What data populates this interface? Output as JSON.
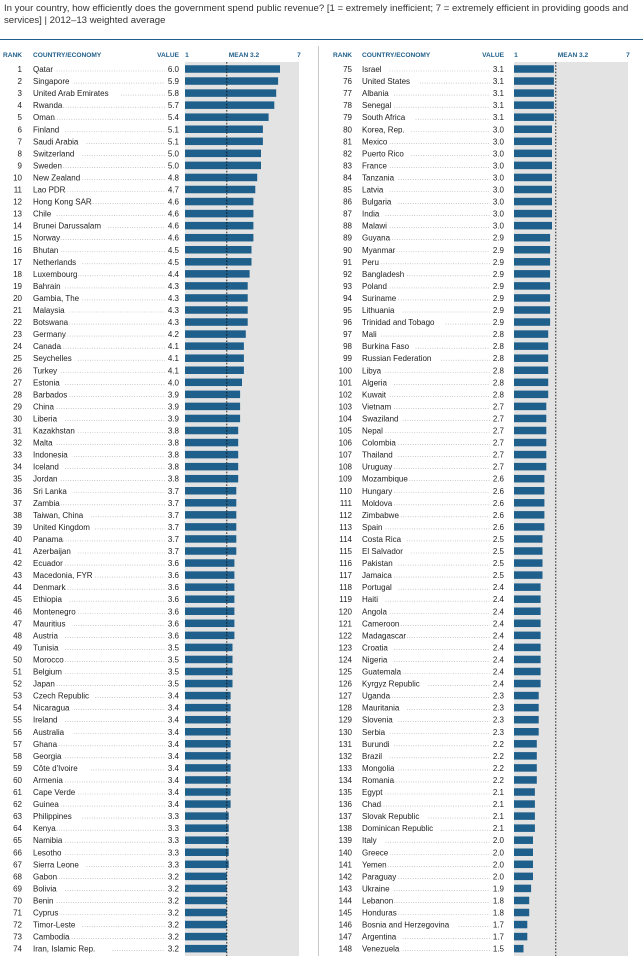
{
  "title": "In your country, how efficiently does the government spend public revenue? [1 = extremely inefficient; 7 = extremely efficient in providing goods and services] | 2012–13 weighted average",
  "colors": {
    "bar": "#1f5f8b",
    "track": "#e3e3e3",
    "header": "#1f5f8b",
    "text": "#222222"
  },
  "chart_data": {
    "type": "bar",
    "orientation": "horizontal",
    "title": "In your country, how efficiently does the government spend public revenue? [1 = extremely inefficient; 7 = extremely efficient in providing goods and services] | 2012–13 weighted average",
    "headers": {
      "rank": "RANK",
      "country": "COUNTRY/ECONOMY",
      "value": "VALUE",
      "scale_min": "1",
      "mean": "MEAN 3.2",
      "scale_max": "7"
    },
    "xlim": [
      1,
      7
    ],
    "mean": 3.2,
    "rows": [
      {
        "rank": "1",
        "country": "Qatar",
        "value": 6.0
      },
      {
        "rank": "2",
        "country": "Singapore",
        "value": 5.9
      },
      {
        "rank": "3",
        "country": "United Arab Emirates",
        "value": 5.8
      },
      {
        "rank": "4",
        "country": "Rwanda",
        "value": 5.7
      },
      {
        "rank": "5",
        "country": "Oman",
        "value": 5.4
      },
      {
        "rank": "6",
        "country": "Finland",
        "value": 5.1
      },
      {
        "rank": "7",
        "country": "Saudi Arabia",
        "value": 5.1
      },
      {
        "rank": "8",
        "country": "Switzerland",
        "value": 5.0
      },
      {
        "rank": "9",
        "country": "Sweden",
        "value": 5.0
      },
      {
        "rank": "10",
        "country": "New Zealand",
        "value": 4.8
      },
      {
        "rank": "11",
        "country": "Lao PDR",
        "value": 4.7
      },
      {
        "rank": "12",
        "country": "Hong Kong SAR",
        "value": 4.6
      },
      {
        "rank": "13",
        "country": "Chile",
        "value": 4.6
      },
      {
        "rank": "14",
        "country": "Brunei Darussalam",
        "value": 4.6
      },
      {
        "rank": "15",
        "country": "Norway",
        "value": 4.6
      },
      {
        "rank": "16",
        "country": "Bhutan",
        "value": 4.5
      },
      {
        "rank": "17",
        "country": "Netherlands",
        "value": 4.5
      },
      {
        "rank": "18",
        "country": "Luxembourg",
        "value": 4.4
      },
      {
        "rank": "19",
        "country": "Bahrain",
        "value": 4.3
      },
      {
        "rank": "20",
        "country": "Gambia, The",
        "value": 4.3
      },
      {
        "rank": "21",
        "country": "Malaysia",
        "value": 4.3
      },
      {
        "rank": "22",
        "country": "Botswana",
        "value": 4.3
      },
      {
        "rank": "23",
        "country": "Germany",
        "value": 4.2
      },
      {
        "rank": "24",
        "country": "Canada",
        "value": 4.1
      },
      {
        "rank": "25",
        "country": "Seychelles",
        "value": 4.1
      },
      {
        "rank": "26",
        "country": "Turkey",
        "value": 4.1
      },
      {
        "rank": "27",
        "country": "Estonia",
        "value": 4.0
      },
      {
        "rank": "28",
        "country": "Barbados",
        "value": 3.9
      },
      {
        "rank": "29",
        "country": "China",
        "value": 3.9
      },
      {
        "rank": "30",
        "country": "Liberia",
        "value": 3.9
      },
      {
        "rank": "31",
        "country": "Kazakhstan",
        "value": 3.8
      },
      {
        "rank": "32",
        "country": "Malta",
        "value": 3.8
      },
      {
        "rank": "33",
        "country": "Indonesia",
        "value": 3.8
      },
      {
        "rank": "34",
        "country": "Iceland",
        "value": 3.8
      },
      {
        "rank": "35",
        "country": "Jordan",
        "value": 3.8
      },
      {
        "rank": "36",
        "country": "Sri Lanka",
        "value": 3.7
      },
      {
        "rank": "37",
        "country": "Zambia",
        "value": 3.7
      },
      {
        "rank": "38",
        "country": "Taiwan, China",
        "value": 3.7
      },
      {
        "rank": "39",
        "country": "United Kingdom",
        "value": 3.7
      },
      {
        "rank": "40",
        "country": "Panama",
        "value": 3.7
      },
      {
        "rank": "41",
        "country": "Azerbaijan",
        "value": 3.7
      },
      {
        "rank": "42",
        "country": "Ecuador",
        "value": 3.6
      },
      {
        "rank": "43",
        "country": "Macedonia, FYR",
        "value": 3.6
      },
      {
        "rank": "44",
        "country": "Denmark",
        "value": 3.6
      },
      {
        "rank": "45",
        "country": "Ethiopia",
        "value": 3.6
      },
      {
        "rank": "46",
        "country": "Montenegro",
        "value": 3.6
      },
      {
        "rank": "47",
        "country": "Mauritius",
        "value": 3.6
      },
      {
        "rank": "48",
        "country": "Austria",
        "value": 3.6
      },
      {
        "rank": "49",
        "country": "Tunisia",
        "value": 3.5
      },
      {
        "rank": "50",
        "country": "Morocco",
        "value": 3.5
      },
      {
        "rank": "51",
        "country": "Belgium",
        "value": 3.5
      },
      {
        "rank": "52",
        "country": "Japan",
        "value": 3.5
      },
      {
        "rank": "53",
        "country": "Czech Republic",
        "value": 3.4
      },
      {
        "rank": "54",
        "country": "Nicaragua",
        "value": 3.4
      },
      {
        "rank": "55",
        "country": "Ireland",
        "value": 3.4
      },
      {
        "rank": "56",
        "country": "Australia",
        "value": 3.4
      },
      {
        "rank": "57",
        "country": "Ghana",
        "value": 3.4
      },
      {
        "rank": "58",
        "country": "Georgia",
        "value": 3.4
      },
      {
        "rank": "59",
        "country": "Côte d'Ivoire",
        "value": 3.4
      },
      {
        "rank": "60",
        "country": "Armenia",
        "value": 3.4
      },
      {
        "rank": "61",
        "country": "Cape Verde",
        "value": 3.4
      },
      {
        "rank": "62",
        "country": "Guinea",
        "value": 3.4
      },
      {
        "rank": "63",
        "country": "Philippines",
        "value": 3.3
      },
      {
        "rank": "64",
        "country": "Kenya",
        "value": 3.3
      },
      {
        "rank": "65",
        "country": "Namibia",
        "value": 3.3
      },
      {
        "rank": "66",
        "country": "Lesotho",
        "value": 3.3
      },
      {
        "rank": "67",
        "country": "Sierra Leone",
        "value": 3.3
      },
      {
        "rank": "68",
        "country": "Gabon",
        "value": 3.2
      },
      {
        "rank": "69",
        "country": "Bolivia",
        "value": 3.2
      },
      {
        "rank": "70",
        "country": "Benin",
        "value": 3.2
      },
      {
        "rank": "71",
        "country": "Cyprus",
        "value": 3.2
      },
      {
        "rank": "72",
        "country": "Timor-Leste",
        "value": 3.2
      },
      {
        "rank": "73",
        "country": "Cambodia",
        "value": 3.2
      },
      {
        "rank": "74",
        "country": "Iran, Islamic Rep.",
        "value": 3.2
      },
      {
        "rank": "75",
        "country": "Israel",
        "value": 3.1
      },
      {
        "rank": "76",
        "country": "United States",
        "value": 3.1
      },
      {
        "rank": "77",
        "country": "Albania",
        "value": 3.1
      },
      {
        "rank": "78",
        "country": "Senegal",
        "value": 3.1
      },
      {
        "rank": "79",
        "country": "South Africa",
        "value": 3.1
      },
      {
        "rank": "80",
        "country": "Korea, Rep.",
        "value": 3.0
      },
      {
        "rank": "81",
        "country": "Mexico",
        "value": 3.0
      },
      {
        "rank": "82",
        "country": "Puerto Rico",
        "value": 3.0
      },
      {
        "rank": "83",
        "country": "France",
        "value": 3.0
      },
      {
        "rank": "84",
        "country": "Tanzania",
        "value": 3.0
      },
      {
        "rank": "85",
        "country": "Latvia",
        "value": 3.0
      },
      {
        "rank": "86",
        "country": "Bulgaria",
        "value": 3.0
      },
      {
        "rank": "87",
        "country": "India",
        "value": 3.0
      },
      {
        "rank": "88",
        "country": "Malawi",
        "value": 3.0
      },
      {
        "rank": "89",
        "country": "Guyana",
        "value": 2.9
      },
      {
        "rank": "90",
        "country": "Myanmar",
        "value": 2.9
      },
      {
        "rank": "91",
        "country": "Peru",
        "value": 2.9
      },
      {
        "rank": "92",
        "country": "Bangladesh",
        "value": 2.9
      },
      {
        "rank": "93",
        "country": "Poland",
        "value": 2.9
      },
      {
        "rank": "94",
        "country": "Suriname",
        "value": 2.9
      },
      {
        "rank": "95",
        "country": "Lithuania",
        "value": 2.9
      },
      {
        "rank": "96",
        "country": "Trinidad and Tobago",
        "value": 2.9
      },
      {
        "rank": "97",
        "country": "Mali",
        "value": 2.8
      },
      {
        "rank": "98",
        "country": "Burkina Faso",
        "value": 2.8
      },
      {
        "rank": "99",
        "country": "Russian Federation",
        "value": 2.8
      },
      {
        "rank": "100",
        "country": "Libya",
        "value": 2.8
      },
      {
        "rank": "101",
        "country": "Algeria",
        "value": 2.8
      },
      {
        "rank": "102",
        "country": "Kuwait",
        "value": 2.8
      },
      {
        "rank": "103",
        "country": "Vietnam",
        "value": 2.7
      },
      {
        "rank": "104",
        "country": "Swaziland",
        "value": 2.7
      },
      {
        "rank": "105",
        "country": "Nepal",
        "value": 2.7
      },
      {
        "rank": "106",
        "country": "Colombia",
        "value": 2.7
      },
      {
        "rank": "107",
        "country": "Thailand",
        "value": 2.7
      },
      {
        "rank": "108",
        "country": "Uruguay",
        "value": 2.7
      },
      {
        "rank": "109",
        "country": "Mozambique",
        "value": 2.6
      },
      {
        "rank": "110",
        "country": "Hungary",
        "value": 2.6
      },
      {
        "rank": "111",
        "country": "Moldova",
        "value": 2.6
      },
      {
        "rank": "112",
        "country": "Zimbabwe",
        "value": 2.6
      },
      {
        "rank": "113",
        "country": "Spain",
        "value": 2.6
      },
      {
        "rank": "114",
        "country": "Costa Rica",
        "value": 2.5
      },
      {
        "rank": "115",
        "country": "El Salvador",
        "value": 2.5
      },
      {
        "rank": "116",
        "country": "Pakistan",
        "value": 2.5
      },
      {
        "rank": "117",
        "country": "Jamaica",
        "value": 2.5
      },
      {
        "rank": "118",
        "country": "Portugal",
        "value": 2.4
      },
      {
        "rank": "119",
        "country": "Haiti",
        "value": 2.4
      },
      {
        "rank": "120",
        "country": "Angola",
        "value": 2.4
      },
      {
        "rank": "121",
        "country": "Cameroon",
        "value": 2.4
      },
      {
        "rank": "122",
        "country": "Madagascar",
        "value": 2.4
      },
      {
        "rank": "123",
        "country": "Croatia",
        "value": 2.4
      },
      {
        "rank": "124",
        "country": "Nigeria",
        "value": 2.4
      },
      {
        "rank": "125",
        "country": "Guatemala",
        "value": 2.4
      },
      {
        "rank": "126",
        "country": "Kyrgyz Republic",
        "value": 2.4
      },
      {
        "rank": "127",
        "country": "Uganda",
        "value": 2.3
      },
      {
        "rank": "128",
        "country": "Mauritania",
        "value": 2.3
      },
      {
        "rank": "129",
        "country": "Slovenia",
        "value": 2.3
      },
      {
        "rank": "130",
        "country": "Serbia",
        "value": 2.3
      },
      {
        "rank": "131",
        "country": "Burundi",
        "value": 2.2
      },
      {
        "rank": "132",
        "country": "Brazil",
        "value": 2.2
      },
      {
        "rank": "133",
        "country": "Mongolia",
        "value": 2.2
      },
      {
        "rank": "134",
        "country": "Romania",
        "value": 2.2
      },
      {
        "rank": "135",
        "country": "Egypt",
        "value": 2.1
      },
      {
        "rank": "136",
        "country": "Chad",
        "value": 2.1
      },
      {
        "rank": "137",
        "country": "Slovak Republic",
        "value": 2.1
      },
      {
        "rank": "138",
        "country": "Dominican Republic",
        "value": 2.1
      },
      {
        "rank": "139",
        "country": "Italy",
        "value": 2.0
      },
      {
        "rank": "140",
        "country": "Greece",
        "value": 2.0
      },
      {
        "rank": "141",
        "country": "Yemen",
        "value": 2.0
      },
      {
        "rank": "142",
        "country": "Paraguay",
        "value": 2.0
      },
      {
        "rank": "143",
        "country": "Ukraine",
        "value": 1.9
      },
      {
        "rank": "144",
        "country": "Lebanon",
        "value": 1.8
      },
      {
        "rank": "145",
        "country": "Honduras",
        "value": 1.8
      },
      {
        "rank": "146",
        "country": "Bosnia and Herzegovina",
        "value": 1.7
      },
      {
        "rank": "147",
        "country": "Argentina",
        "value": 1.7
      },
      {
        "rank": "148",
        "country": "Venezuela",
        "value": 1.5
      }
    ]
  }
}
